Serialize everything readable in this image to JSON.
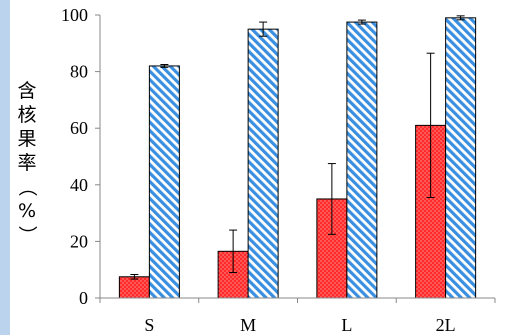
{
  "chart_data": {
    "type": "bar",
    "categories": [
      "S",
      "M",
      "L",
      "2L"
    ],
    "series": [
      {
        "values": [
          7.5,
          16.5,
          35,
          61
        ],
        "error": [
          0.8,
          7.5,
          12.5,
          25.5
        ],
        "color": "#ff2a2a",
        "pattern": "dots"
      },
      {
        "values": [
          82,
          95,
          97.5,
          99
        ],
        "error": [
          0.5,
          2.5,
          0.7,
          0.7
        ],
        "color": "#3a8fe0",
        "pattern": "diagonal-stripes"
      }
    ],
    "ylabel": "含核果率（%）",
    "yticks": [
      "0",
      "20",
      "40",
      "60",
      "80",
      "100"
    ],
    "ylim": [
      0,
      100
    ],
    "grid": false,
    "legend": "none"
  }
}
